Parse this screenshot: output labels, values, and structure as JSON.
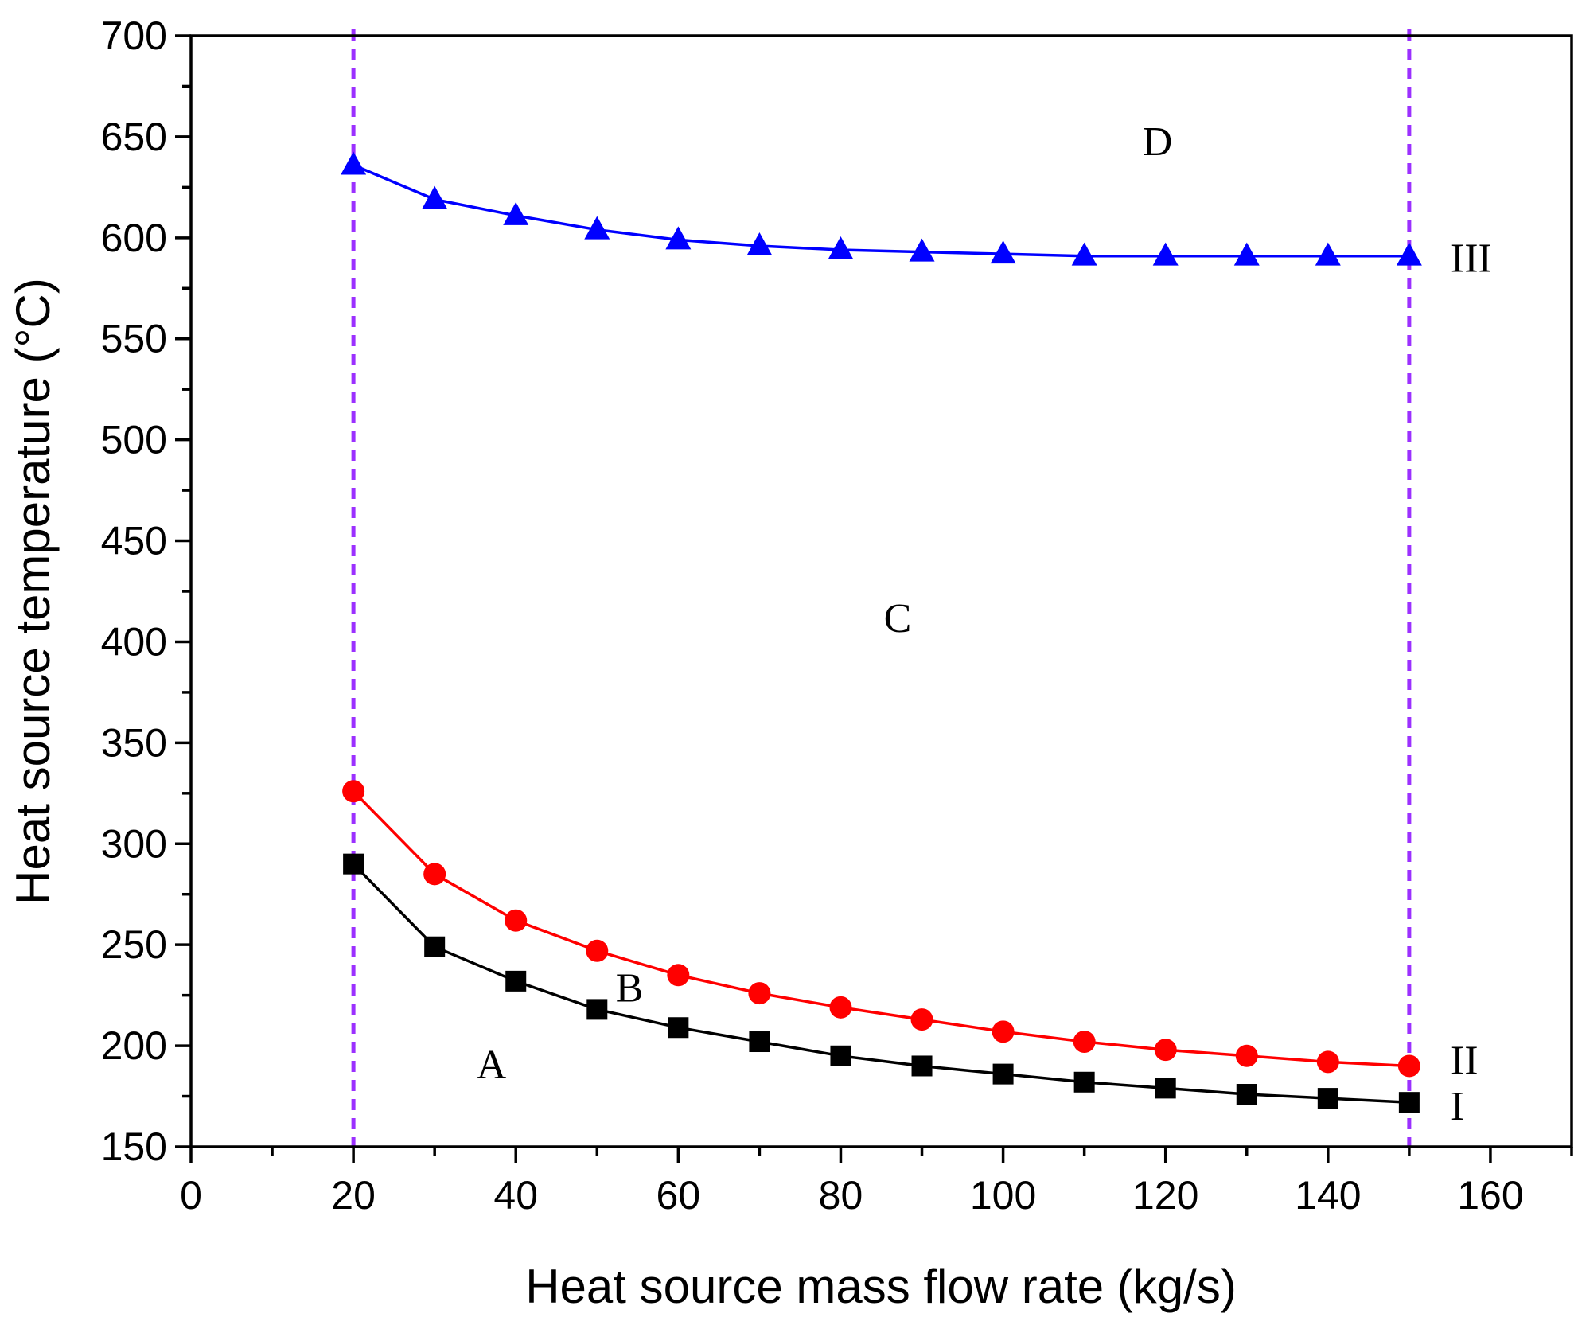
{
  "chart_data": {
    "type": "line",
    "xlabel": "Heat source mass flow rate (kg/s)",
    "ylabel": "Heat source temperature (°C)",
    "xlim": [
      0,
      170
    ],
    "ylim": [
      150,
      700
    ],
    "x_ticks": [
      0,
      20,
      40,
      60,
      80,
      100,
      120,
      140,
      160
    ],
    "y_ticks": [
      150,
      200,
      250,
      300,
      350,
      400,
      450,
      500,
      550,
      600,
      650,
      700
    ],
    "x": [
      20,
      30,
      40,
      50,
      60,
      70,
      80,
      90,
      100,
      110,
      120,
      130,
      140,
      150
    ],
    "series": [
      {
        "name": "I",
        "marker": "square",
        "color": "#000000",
        "values": [
          290,
          249,
          232,
          218,
          209,
          202,
          195,
          190,
          186,
          182,
          179,
          176,
          174,
          172
        ]
      },
      {
        "name": "II",
        "marker": "circle",
        "color": "#ff0000",
        "values": [
          326,
          285,
          262,
          247,
          235,
          226,
          219,
          213,
          207,
          202,
          198,
          195,
          192,
          190
        ]
      },
      {
        "name": "III",
        "marker": "triangle",
        "color": "#0000ff",
        "values": [
          636,
          619,
          611,
          604,
          599,
          596,
          594,
          593,
          592,
          591,
          591,
          591,
          591,
          591
        ]
      }
    ],
    "vertical_bounds": {
      "x_values": [
        20,
        150
      ],
      "color": "#9b30ff",
      "style": "dashed"
    },
    "region_labels": [
      {
        "text": "A",
        "x": 37,
        "y": 191
      },
      {
        "text": "B",
        "x": 54,
        "y": 229
      },
      {
        "text": "C",
        "x": 87,
        "y": 412
      },
      {
        "text": "D",
        "x": 119,
        "y": 648
      }
    ],
    "grid": false
  }
}
